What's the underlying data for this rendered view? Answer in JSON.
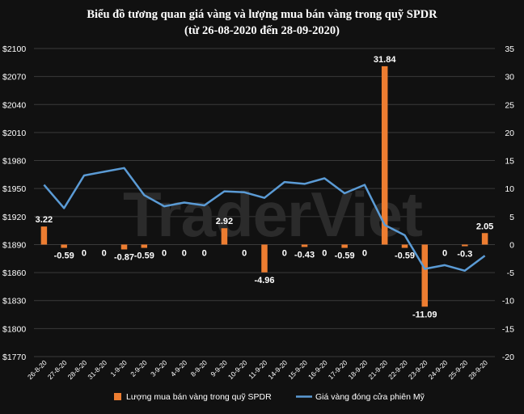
{
  "chart_data": {
    "type": "bar+line",
    "title": "Biểu đồ tương quan giá vàng và lượng mua bán vàng trong quỹ SPDR",
    "subtitle": "(từ 26-08-2020 đến 28-09-2020)",
    "watermark": "TraderViet",
    "categories": [
      "26-8-20",
      "27-8-20",
      "28-8-20",
      "31-8-20",
      "1-9-20",
      "2-9-20",
      "3-9-20",
      "4-9-20",
      "8-9-20",
      "9-9-20",
      "10-9-20",
      "11-9-20",
      "14-9-20",
      "15-9-20",
      "16-9-20",
      "17-9-20",
      "18-9-20",
      "21-9-20",
      "22-9-20",
      "23-9-20",
      "24-9-20",
      "25-9-20",
      "28-9-20"
    ],
    "left_axis": {
      "ylim": [
        1770,
        2100
      ],
      "ticks": [
        1770,
        1800,
        1830,
        1860,
        1890,
        1920,
        1950,
        1980,
        2010,
        2040,
        2070,
        2100
      ],
      "tick_labels": [
        "$1770",
        "$1800",
        "$1830",
        "$1860",
        "$1890",
        "$1920",
        "$1950",
        "$1980",
        "$2010",
        "$2040",
        "$2070",
        "$2100"
      ]
    },
    "right_axis": {
      "ylim": [
        -20,
        35
      ],
      "ticks": [
        -20,
        -15,
        -10,
        -5,
        0,
        5,
        10,
        15,
        20,
        25,
        30,
        35
      ],
      "tick_labels": [
        "-20",
        "-15",
        "-10",
        "-5",
        "0",
        "5",
        "10",
        "15",
        "20",
        "25",
        "30",
        "35"
      ]
    },
    "series": [
      {
        "name": "Lượng mua bán vàng trong quỹ SPDR",
        "type": "bar",
        "axis": "right",
        "color": "#ED7D31",
        "values": [
          3.22,
          -0.59,
          0,
          0,
          -0.87,
          -0.59,
          0,
          0,
          0,
          2.92,
          0,
          -4.96,
          0,
          -0.43,
          0,
          -0.59,
          0,
          31.84,
          -0.59,
          -11.09,
          0,
          -0.3,
          2.05
        ],
        "labels": [
          "3.22",
          "-0.59",
          "0",
          "0",
          "-0.87",
          "-0.59",
          "0",
          "0",
          "0",
          "2.92",
          "0",
          "-4.96",
          "0",
          "-0.43",
          "0",
          "-0.59",
          "0",
          "31.84",
          "-0.59",
          "-11.09",
          "0",
          "-0.3",
          "2.05"
        ]
      },
      {
        "name": "Giá vàng đóng cửa phiên Mỹ",
        "type": "line",
        "axis": "left",
        "color": "#5B9BD5",
        "values": [
          1954,
          1929,
          1964,
          1968,
          1972,
          1943,
          1931,
          1935,
          1932,
          1947,
          1946,
          1940,
          1957,
          1955,
          1961,
          1945,
          1954,
          1911,
          1900,
          1864,
          1868,
          1862,
          1878
        ]
      }
    ],
    "grid": true,
    "legend_position": "bottom"
  }
}
